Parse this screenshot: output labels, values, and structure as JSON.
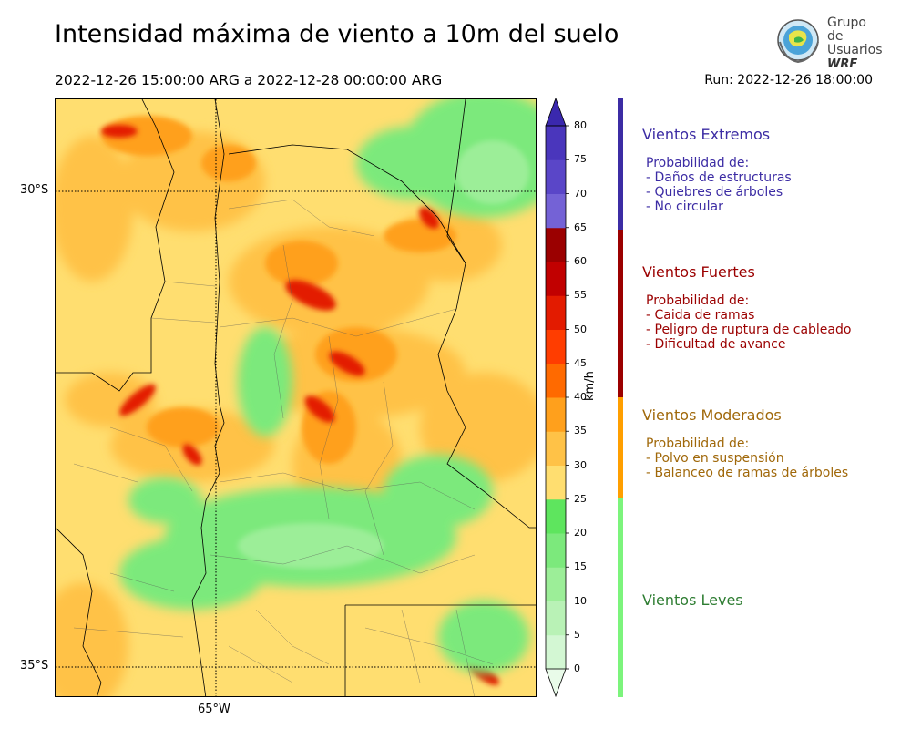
{
  "header": {
    "title": "Intensidad máxima de viento a 10m del suelo",
    "period": "2022-12-26 15:00:00 ARG  a  2022-12-28 00:00:00 ARG",
    "run": "Run: 2022-12-26 18:00:00"
  },
  "logo": {
    "line1": "Grupo de",
    "line2": "Usuarios",
    "line3": "WRF"
  },
  "axes": {
    "lat_labels": [
      "30°S",
      "35°S"
    ],
    "lon_labels": [
      "65°W"
    ]
  },
  "colorbar": {
    "unit": "km/h",
    "ticks": [
      "0",
      "5",
      "10",
      "15",
      "20",
      "25",
      "30",
      "35",
      "40",
      "45",
      "50",
      "55",
      "60",
      "65",
      "70",
      "75",
      "80"
    ],
    "colors": [
      "#e9fbe9",
      "#d3f7d3",
      "#b9f2b6",
      "#9cee98",
      "#7ce97c",
      "#5ee55e",
      "#ffde70",
      "#ffc247",
      "#ffa01c",
      "#ff6a00",
      "#ff3d00",
      "#e31b00",
      "#c10000",
      "#9b0000",
      "#7462d6",
      "#5a46c8",
      "#4a36bc",
      "#3a28ae"
    ]
  },
  "categories": [
    {
      "title": "Vientos Extremos",
      "color": "#3c2ca4",
      "intro": "Probabilidad de:",
      "items": [
        "- Daños de estructuras",
        "- Quiebres de árboles",
        "- No circular"
      ]
    },
    {
      "title": "Vientos Fuertes",
      "color": "#9b0000",
      "intro": "Probabilidad de:",
      "items": [
        "- Caida de ramas",
        "- Peligro de ruptura de cableado",
        "- Dificultad de avance"
      ]
    },
    {
      "title": "Vientos Moderados",
      "color": "#a0680a",
      "intro": "Probabilidad de:",
      "items": [
        "- Polvo en suspensión",
        "- Balanceo de ramas de árboles"
      ]
    },
    {
      "title": "Vientos Leves",
      "color": "#2e7d32",
      "intro": "",
      "items": []
    }
  ]
}
